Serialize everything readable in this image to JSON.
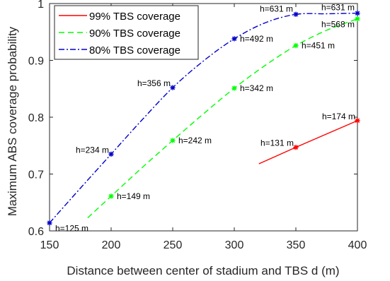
{
  "chart_data": {
    "type": "line",
    "title": "",
    "xlabel": "Distance between center of stadium and TBS d (m)",
    "ylabel": "Maximum ABS coverage probability",
    "xlim": [
      150,
      400
    ],
    "ylim": [
      0.6,
      1.0
    ],
    "xticks": [
      150,
      200,
      250,
      300,
      350,
      400
    ],
    "xtick_labels": [
      "150",
      "200",
      "250",
      "300",
      "350",
      "400"
    ],
    "yticks": [
      0.6,
      0.7,
      0.8,
      0.9,
      1.0
    ],
    "ytick_labels": [
      "0.6",
      "0.7",
      "0.8",
      "0.9",
      "1"
    ],
    "grid": false,
    "legend_position": "top-left",
    "series": [
      {
        "name": "99% TBS coverage",
        "color": "#ff0000",
        "dash": "solid",
        "curve": [
          [
            320,
            0.718
          ],
          [
            350,
            0.747
          ],
          [
            400,
            0.794
          ]
        ],
        "markers": [
          {
            "x": 350,
            "y": 0.747,
            "label": "h=131 m",
            "label_side": "left"
          },
          {
            "x": 400,
            "y": 0.794,
            "label": "h=174 m",
            "label_side": "left"
          }
        ]
      },
      {
        "name": "90% TBS coverage",
        "color": "#00ff00",
        "dash": "dashed",
        "curve": [
          [
            181,
            0.623
          ],
          [
            200,
            0.661
          ],
          [
            225,
            0.711
          ],
          [
            250,
            0.759
          ],
          [
            275,
            0.806
          ],
          [
            300,
            0.851
          ],
          [
            325,
            0.891
          ],
          [
            350,
            0.926
          ],
          [
            375,
            0.953
          ],
          [
            400,
            0.973
          ]
        ],
        "markers": [
          {
            "x": 200,
            "y": 0.661,
            "label": "h=149 m",
            "label_side": "right"
          },
          {
            "x": 250,
            "y": 0.759,
            "label": "h=242 m",
            "label_side": "right"
          },
          {
            "x": 300,
            "y": 0.851,
            "label": "h=342 m",
            "label_side": "right"
          },
          {
            "x": 350,
            "y": 0.926,
            "label": "h=451 m",
            "label_side": "right"
          },
          {
            "x": 400,
            "y": 0.973,
            "label": "h=568 m",
            "label_side": "left-low"
          }
        ]
      },
      {
        "name": "80% TBS coverage",
        "color": "#0000cc",
        "dash": "dashdot",
        "curve": [
          [
            150,
            0.614
          ],
          [
            175,
            0.675
          ],
          [
            200,
            0.735
          ],
          [
            225,
            0.795
          ],
          [
            250,
            0.852
          ],
          [
            275,
            0.899
          ],
          [
            300,
            0.938
          ],
          [
            325,
            0.966
          ],
          [
            350,
            0.981
          ],
          [
            375,
            0.982
          ],
          [
            400,
            0.983
          ]
        ],
        "markers": [
          {
            "x": 150,
            "y": 0.614,
            "label": "h=125 m",
            "label_side": "right-low"
          },
          {
            "x": 200,
            "y": 0.735,
            "label": "h=234 m",
            "label_side": "left"
          },
          {
            "x": 250,
            "y": 0.852,
            "label": "h=356 m",
            "label_side": "left"
          },
          {
            "x": 300,
            "y": 0.938,
            "label": "h=492 m",
            "label_side": "right"
          },
          {
            "x": 350,
            "y": 0.981,
            "label": "h=631 m",
            "label_side": "left-high"
          },
          {
            "x": 400,
            "y": 0.983,
            "label": "h=631 m",
            "label_side": "left-high"
          }
        ]
      }
    ]
  }
}
